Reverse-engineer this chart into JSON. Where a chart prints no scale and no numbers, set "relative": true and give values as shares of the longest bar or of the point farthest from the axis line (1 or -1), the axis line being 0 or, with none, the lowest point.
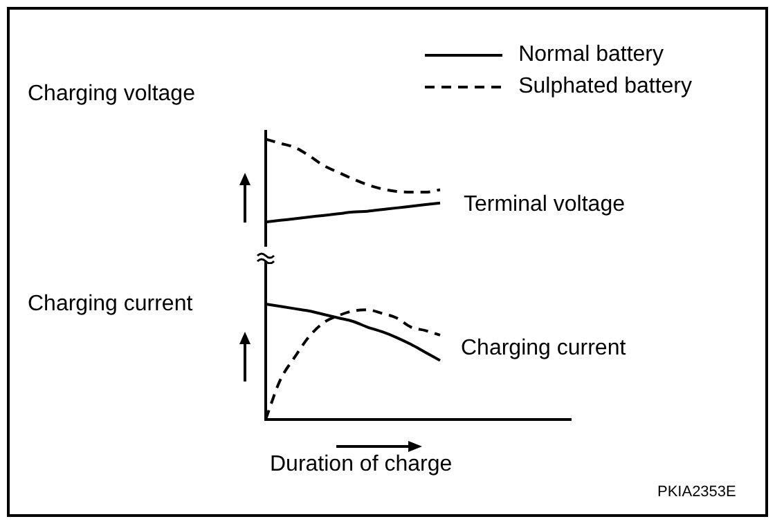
{
  "chart_data": [
    {
      "type": "line",
      "relative": true,
      "ylabel": "Charging voltage",
      "legend": "top right",
      "marker": "none",
      "annotations": [
        "Terminal voltage"
      ],
      "categories": [
        null,
        null,
        null,
        null,
        null,
        null,
        null,
        null,
        null,
        null,
        null,
        null,
        null,
        null,
        null,
        null,
        null,
        null,
        null,
        null,
        null,
        null
      ],
      "series": [
        {
          "name": "Normal battery",
          "color": "#000000",
          "line_style": "solid",
          "values": [
            0,
            0.02,
            0.04,
            0.06,
            0.08,
            0.1,
            0.12,
            0.13,
            0.15,
            0.17,
            0.19,
            0.21,
            0.23,
            null,
            null,
            null,
            null,
            null,
            null,
            null,
            null,
            null
          ]
        },
        {
          "name": "Sulphated battery",
          "color": "#000000",
          "line_style": "dashed",
          "values": [
            1,
            0.95,
            0.9,
            0.8,
            0.68,
            0.6,
            0.52,
            0.45,
            0.4,
            0.37,
            0.36,
            0.36,
            0.39,
            null,
            null,
            null,
            null,
            null,
            null,
            null,
            null,
            null
          ]
        }
      ]
    },
    {
      "type": "line",
      "relative": true,
      "ylabel": "Charging current",
      "xlabel": "Duration of charge",
      "marker": "none",
      "annotations": [
        "Charging current",
        "PKIA2353E"
      ],
      "categories": [
        null,
        null,
        null,
        null,
        null,
        null,
        null,
        null,
        null,
        null,
        null,
        null,
        null,
        null,
        null,
        null,
        null,
        null,
        null,
        null,
        null,
        null
      ],
      "series": [
        {
          "color": "#000000",
          "line_style": "solid",
          "values": [
            1,
            0.98,
            0.96,
            0.94,
            0.91,
            0.88,
            0.85,
            0.8,
            0.76,
            0.71,
            0.65,
            0.58,
            0.51,
            null,
            null,
            null,
            null,
            null,
            null,
            null,
            null,
            null
          ]
        },
        {
          "color": "#000000",
          "line_style": "dashed",
          "values": [
            0,
            0.34,
            0.54,
            0.72,
            0.84,
            0.9,
            0.94,
            0.95,
            0.92,
            0.88,
            0.8,
            0.77,
            0.73,
            null,
            null,
            null,
            null,
            null,
            null,
            null,
            null,
            null
          ]
        }
      ]
    }
  ]
}
